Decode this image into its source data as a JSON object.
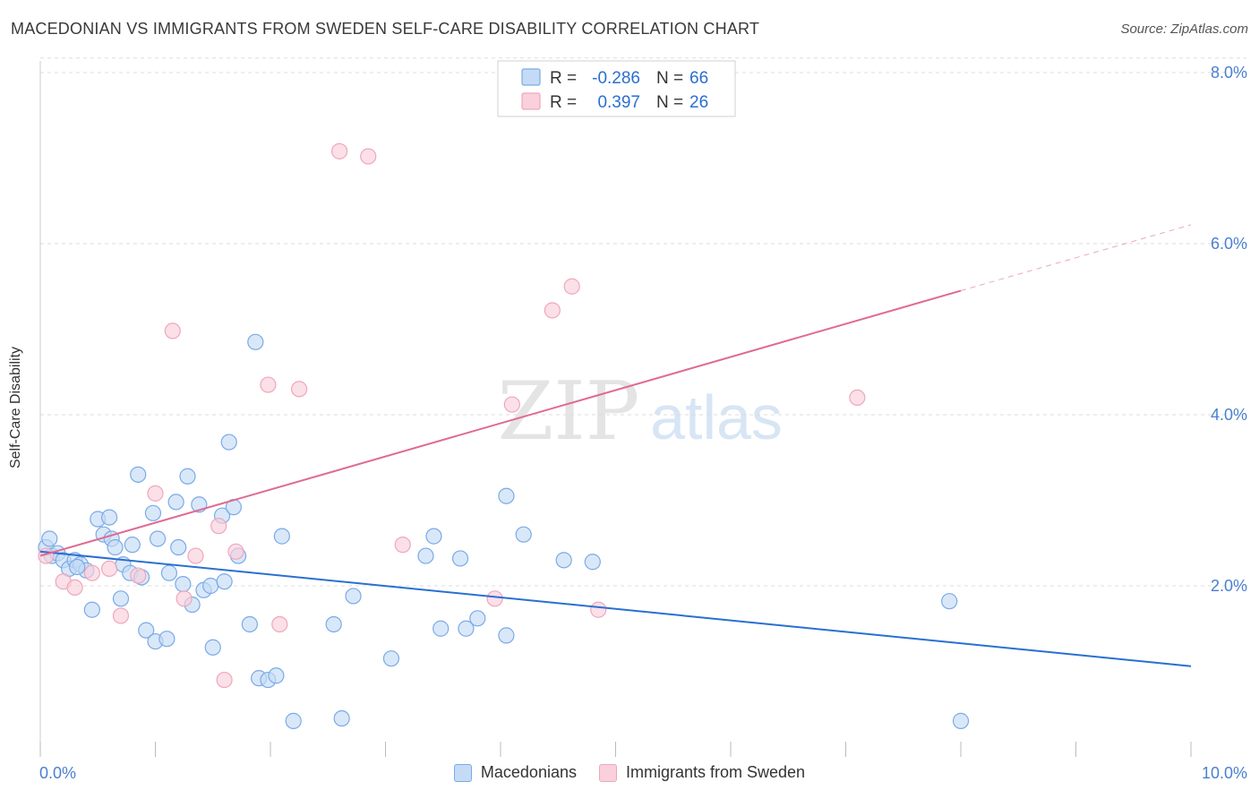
{
  "chart_data": {
    "type": "scatter",
    "title": "MACEDONIAN VS IMMIGRANTS FROM SWEDEN SELF-CARE DISABILITY CORRELATION CHART",
    "source": "Source: ZipAtlas.com",
    "ylabel": "Self-Care Disability",
    "xlabel": "",
    "xlim": [
      0,
      10
    ],
    "ylim": [
      0,
      8
    ],
    "x_tick_labels": [
      "0.0%",
      "10.0%"
    ],
    "y_ticks": [
      2,
      4,
      6,
      8
    ],
    "y_tick_labels": [
      "2.0%",
      "4.0%",
      "6.0%",
      "8.0%"
    ],
    "grid": true,
    "watermark": "ZIPatlas",
    "legend_stats": [
      {
        "r_label": "R =",
        "r_value": "-0.286",
        "n_label": "N =",
        "n_value": "66"
      },
      {
        "r_label": "R =",
        "r_value": "0.397",
        "n_label": "N =",
        "n_value": "26"
      }
    ],
    "series": [
      {
        "name": "Macedonians",
        "color": "#7aaae8",
        "fill": "#c5dbf5",
        "line_color": "#2a6fd1",
        "trend": {
          "x": [
            0,
            10
          ],
          "y": [
            2.4,
            1.06
          ]
        },
        "points": [
          [
            0.05,
            2.45
          ],
          [
            0.1,
            2.35
          ],
          [
            0.15,
            2.38
          ],
          [
            0.2,
            2.3
          ],
          [
            0.25,
            2.2
          ],
          [
            0.3,
            2.3
          ],
          [
            0.35,
            2.25
          ],
          [
            0.4,
            2.18
          ],
          [
            0.45,
            1.72
          ],
          [
            0.5,
            2.78
          ],
          [
            0.55,
            2.6
          ],
          [
            0.6,
            2.8
          ],
          [
            0.62,
            2.55
          ],
          [
            0.65,
            2.45
          ],
          [
            0.7,
            1.85
          ],
          [
            0.72,
            2.25
          ],
          [
            0.78,
            2.15
          ],
          [
            0.8,
            2.48
          ],
          [
            0.85,
            3.3
          ],
          [
            0.88,
            2.1
          ],
          [
            0.92,
            1.48
          ],
          [
            0.98,
            2.85
          ],
          [
            1.0,
            1.35
          ],
          [
            1.02,
            2.55
          ],
          [
            1.1,
            1.38
          ],
          [
            1.12,
            2.15
          ],
          [
            1.18,
            2.98
          ],
          [
            1.2,
            2.45
          ],
          [
            1.24,
            2.02
          ],
          [
            1.28,
            3.28
          ],
          [
            1.32,
            1.78
          ],
          [
            1.38,
            2.95
          ],
          [
            1.42,
            1.95
          ],
          [
            1.48,
            2.0
          ],
          [
            1.5,
            1.28
          ],
          [
            1.58,
            2.82
          ],
          [
            1.6,
            2.05
          ],
          [
            1.64,
            3.68
          ],
          [
            1.68,
            2.92
          ],
          [
            1.72,
            2.35
          ],
          [
            1.82,
            1.55
          ],
          [
            1.87,
            4.85
          ],
          [
            1.9,
            0.92
          ],
          [
            1.98,
            0.9
          ],
          [
            2.05,
            0.95
          ],
          [
            2.1,
            2.58
          ],
          [
            2.2,
            0.42
          ],
          [
            2.55,
            1.55
          ],
          [
            2.62,
            0.45
          ],
          [
            2.72,
            1.88
          ],
          [
            3.05,
            1.15
          ],
          [
            3.35,
            2.35
          ],
          [
            3.42,
            2.58
          ],
          [
            3.48,
            1.5
          ],
          [
            3.65,
            2.32
          ],
          [
            3.7,
            1.5
          ],
          [
            3.8,
            1.62
          ],
          [
            4.05,
            1.42
          ],
          [
            4.05,
            3.05
          ],
          [
            4.2,
            2.6
          ],
          [
            4.55,
            2.3
          ],
          [
            4.8,
            2.28
          ],
          [
            7.9,
            1.82
          ],
          [
            8.0,
            0.42
          ],
          [
            0.08,
            2.55
          ],
          [
            0.32,
            2.22
          ]
        ]
      },
      {
        "name": "Immigrants from Sweden",
        "color": "#f0a6bc",
        "fill": "#f9d0dc",
        "line_color": "#e06a92",
        "trend": {
          "x": [
            0,
            8.0
          ],
          "y": [
            2.35,
            5.45
          ]
        },
        "trend_dash": {
          "x": [
            8.0,
            10.0
          ],
          "y": [
            5.45,
            6.22
          ]
        },
        "points": [
          [
            0.05,
            2.35
          ],
          [
            0.2,
            2.05
          ],
          [
            0.3,
            1.98
          ],
          [
            0.45,
            2.15
          ],
          [
            0.6,
            2.2
          ],
          [
            0.7,
            1.65
          ],
          [
            0.85,
            2.12
          ],
          [
            1.0,
            3.08
          ],
          [
            1.15,
            4.98
          ],
          [
            1.25,
            1.85
          ],
          [
            1.35,
            2.35
          ],
          [
            1.55,
            2.7
          ],
          [
            1.6,
            0.9
          ],
          [
            1.7,
            2.4
          ],
          [
            1.98,
            4.35
          ],
          [
            2.08,
            1.55
          ],
          [
            2.25,
            4.3
          ],
          [
            2.6,
            7.08
          ],
          [
            2.85,
            7.02
          ],
          [
            3.15,
            2.48
          ],
          [
            3.95,
            1.85
          ],
          [
            4.1,
            4.12
          ],
          [
            4.45,
            5.22
          ],
          [
            4.62,
            5.5
          ],
          [
            4.85,
            1.72
          ],
          [
            7.1,
            4.2
          ]
        ]
      }
    ]
  }
}
